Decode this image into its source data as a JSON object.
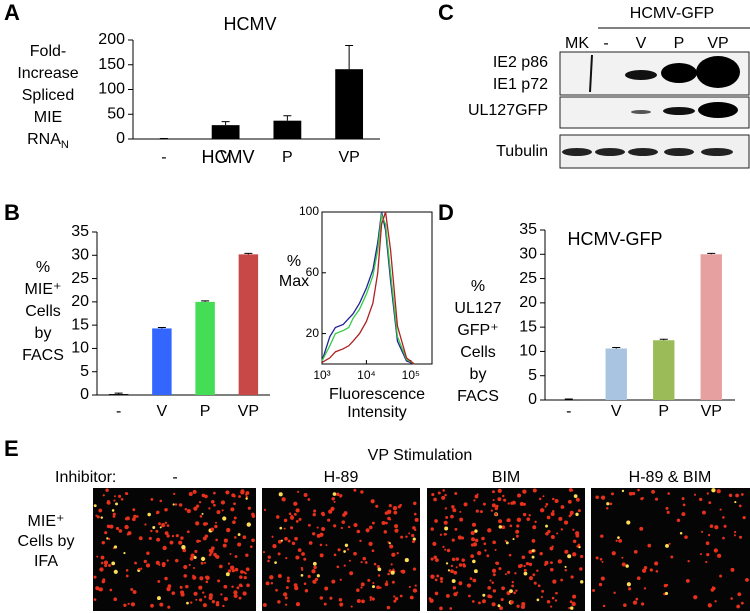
{
  "panel_labels": [
    "A",
    "B",
    "C",
    "D",
    "E"
  ],
  "chart_data": [
    {
      "type": "bar",
      "title": "HCMV",
      "y_label": [
        "Fold-",
        "Increase",
        "Spliced",
        "MIE",
        "RNA"
      ],
      "y_label_subscript": "N",
      "categories": [
        "-",
        "V",
        "P",
        "VP"
      ],
      "values": [
        1,
        28,
        37,
        141
      ],
      "errors": [
        0,
        7,
        10,
        48
      ],
      "colors": [
        "#000000",
        "#000000",
        "#000000",
        "#000000"
      ],
      "ylim": [
        0,
        200
      ],
      "yticks": [
        0,
        50,
        100,
        150,
        200
      ]
    },
    {
      "type": "bar",
      "title": "HCMV",
      "y_label": [
        "%",
        "MIE⁺",
        "Cells",
        "by",
        "FACS"
      ],
      "categories": [
        "-",
        "V",
        "P",
        "VP"
      ],
      "values": [
        0.2,
        14.3,
        20,
        30.2
      ],
      "errors": [
        0.2,
        0.2,
        0.2,
        0.2
      ],
      "colors": [
        "#000000",
        "#3366ff",
        "#44dd55",
        "#c84848"
      ],
      "ylim": [
        0,
        35
      ],
      "yticks": [
        0,
        5,
        10,
        15,
        20,
        25,
        30,
        35
      ]
    },
    {
      "type": "line",
      "y_label": [
        "%",
        "Max"
      ],
      "x_label": [
        "Fluorescence",
        "Intensity"
      ],
      "log_x": true,
      "x": [
        1000,
        1500,
        2000,
        3000,
        4000,
        5000,
        7000,
        10000,
        14000,
        18000,
        22000,
        27000,
        35000,
        50000,
        80000,
        120000
      ],
      "series": [
        {
          "color": "#22229a",
          "values": [
            2,
            18,
            24,
            26,
            30,
            33,
            40,
            50,
            62,
            80,
            100,
            88,
            55,
            15,
            2,
            0
          ]
        },
        {
          "color": "#33cc44",
          "values": [
            2,
            12,
            20,
            22,
            24,
            30,
            36,
            46,
            58,
            75,
            98,
            92,
            60,
            18,
            3,
            0
          ]
        },
        {
          "color": "#b02020",
          "values": [
            1,
            4,
            8,
            10,
            12,
            15,
            20,
            28,
            40,
            60,
            92,
            100,
            75,
            25,
            4,
            0
          ]
        }
      ],
      "xlim": [
        1000,
        300000
      ],
      "xticks": [
        {
          "value": 1000,
          "label": "10³"
        },
        {
          "value": 10000,
          "label": "10⁴"
        },
        {
          "value": 100000,
          "label": "10⁵"
        }
      ],
      "ylim": [
        0,
        100
      ],
      "yticks": [
        20,
        60,
        100
      ]
    },
    {
      "type": "bar",
      "title": "HCMV-GFP",
      "y_label": [
        "%",
        "UL127",
        "GFP⁺",
        "Cells",
        "by",
        "FACS"
      ],
      "categories": [
        "-",
        "V",
        "P",
        "VP"
      ],
      "values": [
        0.1,
        10.6,
        12.3,
        30
      ],
      "errors": [
        0.1,
        0.2,
        0.2,
        0.2
      ],
      "colors": [
        "#000000",
        "#a8c4e0",
        "#9bbb59",
        "#e6a0a0"
      ],
      "ylim": [
        0,
        35
      ],
      "yticks": [
        0,
        5,
        10,
        15,
        20,
        25,
        30,
        35
      ]
    }
  ],
  "blot": {
    "header": "HCMV-GFP",
    "lanes": [
      "MK",
      "-",
      "V",
      "P",
      "VP"
    ],
    "rows": [
      "IE2 p86",
      "IE1 p72",
      "UL127GFP",
      "Tubulin"
    ]
  },
  "images": {
    "title": "VP Stimulation",
    "row_header": "Inhibitor:",
    "columns": [
      "-",
      "H-89",
      "BIM",
      "H-89 & BIM"
    ],
    "row_label": [
      "MIE⁺",
      "Cells by",
      "IFA"
    ]
  }
}
